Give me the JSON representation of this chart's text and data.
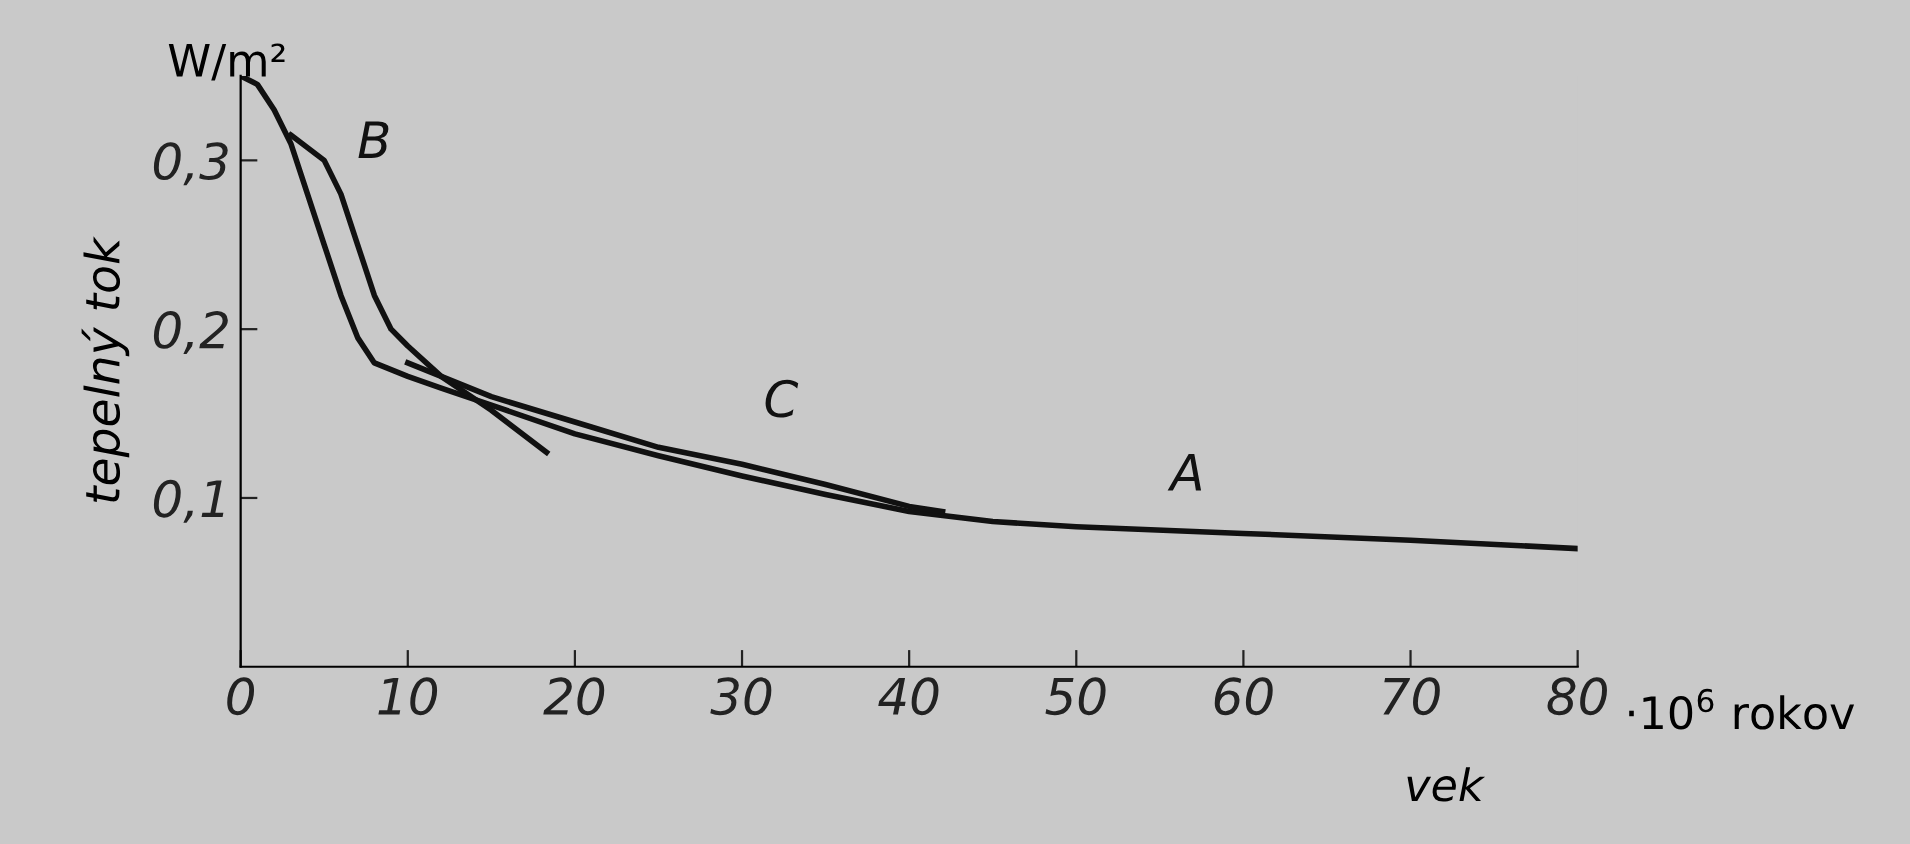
{
  "chart_data": {
    "type": "line",
    "xlabel": "vek",
    "ylabel": "tepelný tok",
    "xlim": [
      0,
      80
    ],
    "ylim": [
      0,
      0.35
    ],
    "xticks": [
      0,
      10,
      20,
      30,
      40,
      50,
      60,
      70,
      80
    ],
    "yticks": [
      {
        "value": 0.1,
        "label": "0,1"
      },
      {
        "value": 0.2,
        "label": "0,2"
      },
      {
        "value": 0.3,
        "label": "0,3"
      }
    ],
    "grid": false,
    "legend": false,
    "marker": "none",
    "line_style": "solid",
    "series": [
      {
        "name": "A",
        "color": "#111111",
        "x": [
          0,
          1,
          2,
          3,
          4,
          5,
          6,
          7,
          8,
          10,
          12,
          15,
          20,
          25,
          30,
          35,
          40,
          45,
          50,
          60,
          70,
          80
        ],
        "values": [
          0.35,
          0.345,
          0.33,
          0.31,
          0.28,
          0.25,
          0.22,
          0.195,
          0.18,
          0.172,
          0.165,
          0.155,
          0.138,
          0.125,
          0.113,
          0.102,
          0.092,
          0.086,
          0.083,
          0.079,
          0.075,
          0.07
        ]
      },
      {
        "name": "B",
        "color": "#111111",
        "x": [
          3,
          5,
          6,
          7,
          8,
          9,
          10,
          12,
          15,
          18.3
        ],
        "values": [
          0.315,
          0.3,
          0.28,
          0.25,
          0.22,
          0.2,
          0.19,
          0.172,
          0.152,
          0.127
        ]
      },
      {
        "name": "C",
        "color": "#111111",
        "x": [
          10,
          15,
          20,
          25,
          30,
          35,
          40,
          42
        ],
        "values": [
          0.18,
          0.16,
          0.145,
          0.13,
          0.12,
          0.108,
          0.095,
          0.092
        ]
      }
    ],
    "annotations": [
      "W/m²",
      "·10$^{6}$ rokov"
    ]
  }
}
